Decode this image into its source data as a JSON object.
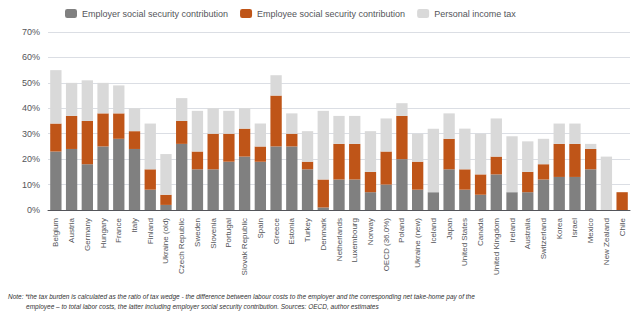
{
  "chart_data": {
    "type": "bar",
    "stacked": true,
    "grid": true,
    "legend": "upper left",
    "categories": [
      "Belgium",
      "Austria",
      "Germany",
      "Hungary",
      "France",
      "Italy",
      "Finland",
      "Ukraine (old)",
      "Czech Republic",
      "Sweden",
      "Slovenia",
      "Portugal",
      "Slovak Republic",
      "Spain",
      "Greece",
      "Estonia",
      "Turkey",
      "Denmark",
      "Netherlands",
      "Luxembourg",
      "Norway",
      "OECD (36.0%)",
      "Poland",
      "Ukraine (new)",
      "Iceland",
      "Japan",
      "United States",
      "Canada",
      "United Kingdom",
      "Ireland",
      "Australia",
      "Switzerland",
      "Korea",
      "Israel",
      "Mexico",
      "New Zealand",
      "Chile"
    ],
    "series": [
      {
        "name": "Employer social security contribution",
        "color": "#808080",
        "values": [
          23,
          24,
          18,
          25,
          28,
          24,
          8,
          2,
          26,
          16,
          16,
          19,
          21,
          19,
          25,
          25,
          16,
          1,
          12,
          12,
          7,
          10,
          20,
          8,
          7,
          16,
          8,
          6,
          14,
          7,
          7,
          12,
          13,
          13,
          16,
          0,
          0
        ]
      },
      {
        "name": "Employee social security contribution",
        "color": "#bf5518",
        "values": [
          11,
          13,
          17,
          13,
          10,
          7,
          8,
          4,
          9,
          7,
          14,
          11,
          11,
          6,
          20,
          5,
          3,
          11,
          14,
          14,
          8,
          13,
          17,
          11,
          0,
          12,
          8,
          8,
          7,
          0,
          8,
          6,
          13,
          13,
          8,
          0,
          7
        ]
      },
      {
        "name": "Personal income tax",
        "color": "#d9d9d9",
        "values": [
          21,
          13,
          16,
          12,
          11,
          9,
          18,
          16,
          9,
          16,
          10,
          9,
          8,
          9,
          8,
          8,
          12,
          27,
          11,
          11,
          16,
          13,
          5,
          11,
          25,
          10,
          16,
          16,
          15,
          22,
          12,
          10,
          8,
          8,
          2,
          21,
          0
        ]
      }
    ],
    "ylim": [
      0,
      70
    ],
    "yticks": [
      {
        "value": 0,
        "label": "0%"
      },
      {
        "value": 10,
        "label": "10%"
      },
      {
        "value": 20,
        "label": "20%"
      },
      {
        "value": 30,
        "label": "30%"
      },
      {
        "value": 40,
        "label": "40%"
      },
      {
        "value": 50,
        "label": "50%"
      },
      {
        "value": 60,
        "label": "60%"
      },
      {
        "value": 70,
        "label": "70%"
      }
    ],
    "annotations": [
      "Note: *the tax burden is calculated as the ratio of tax wedge - the difference between labour costs to the employer and the corresponding net take-home pay of the",
      "          employee – to total labor costs, the latter including employer social security contribution. Sources: OECD, author estimates"
    ]
  }
}
